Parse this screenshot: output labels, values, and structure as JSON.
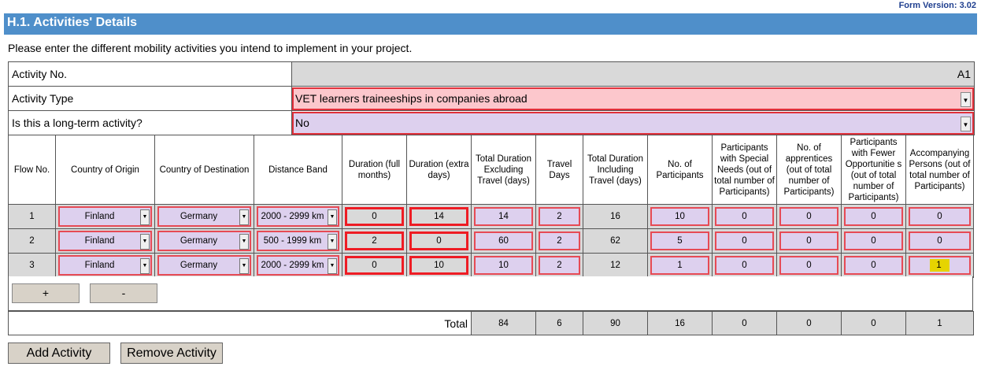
{
  "form_version": "Form Version: 3.02",
  "section_title": "H.1. Activities' Details",
  "intro": "Please enter the different mobility activities you intend to implement in your project.",
  "info": {
    "activity_no_label": "Activity No.",
    "activity_no_value": "A1",
    "activity_type_label": "Activity Type",
    "activity_type_value": "VET learners traineeships in companies abroad",
    "long_term_label": "Is this a long-term activity?",
    "long_term_value": "No"
  },
  "columns": [
    "Flow No.",
    "Country of Origin",
    "Country of Destination",
    "Distance Band",
    "Duration (full months)",
    "Duration (extra days)",
    "Total Duration Excluding Travel (days)",
    "Travel Days",
    "Total Duration Including Travel (days)",
    "No. of Participants",
    "Participants with Special Needs (out of total number of Participants)",
    "No. of apprentices (out of total number of Participants)",
    "Participants with Fewer Opportunitie s (out of total number of Participants)",
    "Accompanying Persons (out of total number of Participants)"
  ],
  "rows": [
    {
      "flow": "1",
      "origin": "Finland",
      "destination": "Germany",
      "distance": "2000 - 2999 km",
      "months": "0",
      "extra_days": "14",
      "total_excl": "14",
      "travel": "2",
      "total_incl": "16",
      "participants": "10",
      "special": "0",
      "apprentices": "0",
      "fewer": "0",
      "accompanying": "0"
    },
    {
      "flow": "2",
      "origin": "Finland",
      "destination": "Germany",
      "distance": "500 - 1999 km",
      "months": "2",
      "extra_days": "0",
      "total_excl": "60",
      "travel": "2",
      "total_incl": "62",
      "participants": "5",
      "special": "0",
      "apprentices": "0",
      "fewer": "0",
      "accompanying": "0"
    },
    {
      "flow": "3",
      "origin": "Finland",
      "destination": "Germany",
      "distance": "2000 - 2999 km",
      "months": "0",
      "extra_days": "10",
      "total_excl": "10",
      "travel": "2",
      "total_incl": "12",
      "participants": "1",
      "special": "0",
      "apprentices": "0",
      "fewer": "0",
      "accompanying": "1"
    }
  ],
  "add_row_label": "+",
  "remove_row_label": "-",
  "totals": {
    "label": "Total",
    "total_excl": "84",
    "travel": "6",
    "total_incl": "90",
    "participants": "16",
    "special": "0",
    "apprentices": "0",
    "fewer": "0",
    "accompanying": "1"
  },
  "add_activity_label": "Add Activity",
  "remove_activity_label": "Remove Activity",
  "colors": {
    "header_blue": "#4f8fca",
    "violet_field": "#ddd0ee",
    "pink_field": "#fcc7cc",
    "error_border": "#e0303a",
    "highlight": "#e6d400"
  }
}
